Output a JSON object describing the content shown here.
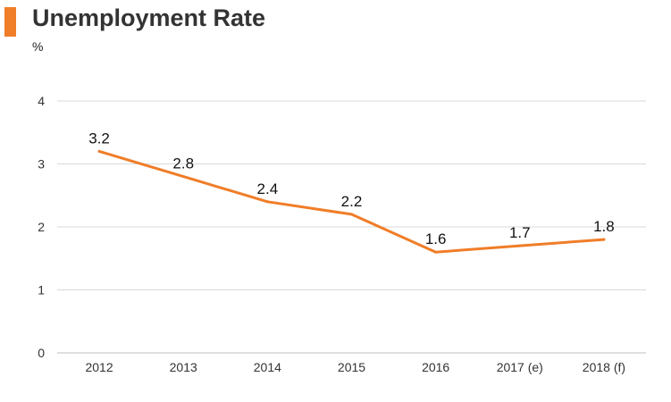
{
  "header": {
    "title": "Unemployment Rate",
    "unit": "%"
  },
  "colors": {
    "accent": "#f07d28",
    "line": "#f07d28",
    "grid": "#d9d9d9",
    "axis": "#bfbfbf"
  },
  "chart_data": {
    "type": "line",
    "title": "Unemployment Rate",
    "ylabel": "%",
    "xlabel": "",
    "categories": [
      "2012",
      "2013",
      "2014",
      "2015",
      "2016",
      "2017 (e)",
      "2018 (f)"
    ],
    "series": [
      {
        "values": [
          3.2,
          2.8,
          2.4,
          2.2,
          1.6,
          1.7,
          1.8
        ]
      }
    ],
    "data_labels": [
      "3.2",
      "2.8",
      "2.4",
      "2.2",
      "1.6",
      "1.7",
      "1.8"
    ],
    "ylim": [
      0,
      4
    ],
    "yticks": [
      "0",
      "1",
      "2",
      "3",
      "4"
    ],
    "grid": true,
    "legend": "none"
  }
}
